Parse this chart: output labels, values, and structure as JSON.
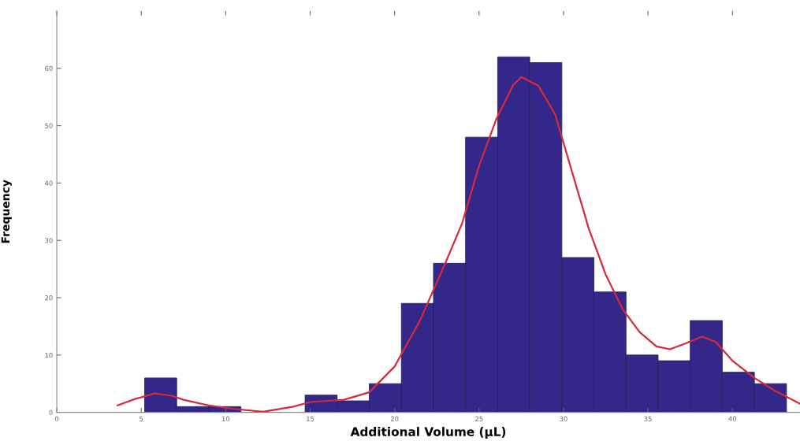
{
  "chart_data": {
    "type": "histogram",
    "xlabel": "Additional Volume (µL)",
    "ylabel": "Frequency",
    "bins": [
      5.2,
      7.1,
      9.0,
      10.9,
      12.8,
      14.7,
      16.6,
      18.5,
      20.4,
      22.3,
      24.2,
      26.1,
      28.0,
      29.9,
      31.8,
      33.7,
      35.6,
      37.5,
      39.4,
      41.3,
      43.2
    ],
    "values": [
      6,
      1,
      1,
      0,
      0,
      3,
      2,
      5,
      19,
      26,
      48,
      62,
      61,
      27,
      21,
      10,
      9,
      16,
      7,
      5
    ],
    "color": "#33288a",
    "series": [
      {
        "type": "line",
        "color": "#d42a3a",
        "x": [
          3.6,
          4.6,
          5.8,
          6.8,
          7.5,
          9,
          10.5,
          12.2,
          14,
          15,
          17,
          18.5,
          20,
          21.5,
          23,
          24,
          25,
          26,
          27,
          27.5,
          28.5,
          29.5,
          30.5,
          31.5,
          32.5,
          33.5,
          34.5,
          35.5,
          36.3,
          37.2,
          38.2,
          39,
          40,
          41.3,
          42.5,
          44
        ],
        "values": [
          1.2,
          2.3,
          3.3,
          2.9,
          2.2,
          1.2,
          0.6,
          0.1,
          1,
          1.8,
          2.2,
          3.5,
          8,
          16,
          26,
          33,
          43,
          51,
          57,
          58.5,
          57,
          52,
          42,
          32,
          24,
          18,
          14,
          11.5,
          11,
          12,
          13.2,
          12.3,
          9,
          6,
          3.8,
          1.5
        ]
      }
    ],
    "xlim": [
      0,
      44
    ],
    "ylim": [
      0,
      70
    ],
    "xticks": [
      0,
      5,
      10,
      15,
      20,
      25,
      30,
      35,
      40
    ],
    "yticks": [
      0,
      10,
      20,
      30,
      40,
      50,
      60
    ],
    "grid": false
  }
}
